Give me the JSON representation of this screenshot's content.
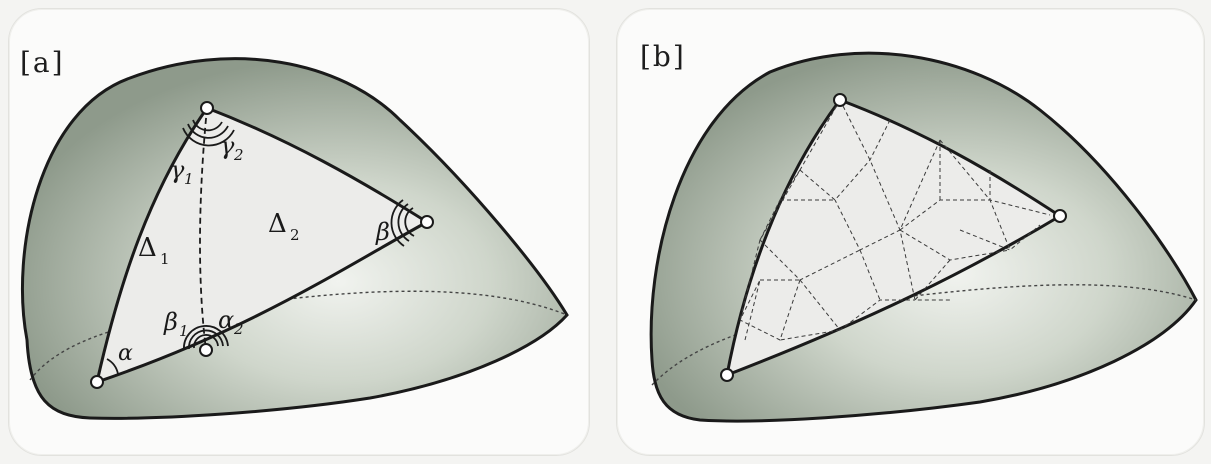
{
  "panels": [
    {
      "label": "[a]",
      "angles": {
        "alpha": "α",
        "beta": "β",
        "beta1": "β",
        "beta1_sub": "1",
        "alpha2": "α",
        "alpha2_sub": "2",
        "gamma1": "γ",
        "gamma1_sub": "1",
        "gamma2": "γ",
        "gamma2_sub": "2"
      },
      "regions": {
        "delta1": "Δ",
        "delta1_sub": "1",
        "delta2": "Δ",
        "delta2_sub": "2"
      }
    },
    {
      "label": "[b]"
    }
  ],
  "colors": {
    "surface_dark": "#8f9a8c",
    "surface_light": "#dde3da",
    "triangle_fill": "#ececea",
    "outline": "#1a1a1a"
  }
}
